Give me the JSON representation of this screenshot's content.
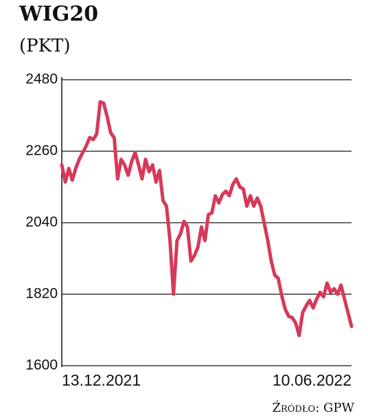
{
  "chart_data": {
    "type": "line",
    "title": "WIG20",
    "subtitle": "(PKT)",
    "source": "Źródło: GPW",
    "categories": [
      "13.12.2021",
      null,
      null,
      null,
      null,
      null,
      null,
      null,
      null,
      null,
      null,
      null,
      null,
      null,
      null,
      null,
      null,
      null,
      null,
      null,
      null,
      null,
      null,
      null,
      null,
      null,
      null,
      null,
      null,
      null,
      null,
      null,
      null,
      null,
      null,
      null,
      null,
      null,
      null,
      null,
      null,
      null,
      null,
      null,
      null,
      null,
      null,
      null,
      null,
      null,
      null,
      null,
      null,
      null,
      null,
      null,
      null,
      null,
      null,
      null,
      null,
      null,
      null,
      null,
      null,
      null,
      null,
      null,
      null,
      null,
      null,
      null,
      null,
      null,
      null,
      null,
      null,
      null,
      null,
      null,
      null,
      null,
      null,
      "10.06.2022"
    ],
    "series": [
      {
        "color": "#d63a5a",
        "values": [
          2218,
          2165,
          2207,
          2171,
          2207,
          2235,
          2256,
          2277,
          2302,
          2296,
          2313,
          2412,
          2408,
          2366,
          2317,
          2302,
          2175,
          2235,
          2218,
          2186,
          2228,
          2256,
          2218,
          2175,
          2235,
          2197,
          2218,
          2165,
          2201,
          2108,
          2091,
          1985,
          1820,
          1985,
          2006,
          2044,
          2027,
          1922,
          1939,
          1965,
          2027,
          1985,
          2065,
          2070,
          2123,
          2101,
          2127,
          2137,
          2123,
          2158,
          2175,
          2150,
          2144,
          2091,
          2123,
          2091,
          2116,
          2091,
          2038,
          1985,
          1922,
          1879,
          1869,
          1816,
          1774,
          1752,
          1748,
          1731,
          1693,
          1763,
          1784,
          1801,
          1778,
          1805,
          1826,
          1812,
          1854,
          1826,
          1837,
          1820,
          1848,
          1805,
          1763,
          1721
        ]
      }
    ],
    "ylim": [
      1600,
      2480
    ],
    "yticks": [
      1600,
      1820,
      2040,
      2260,
      2480
    ],
    "grid": true
  }
}
